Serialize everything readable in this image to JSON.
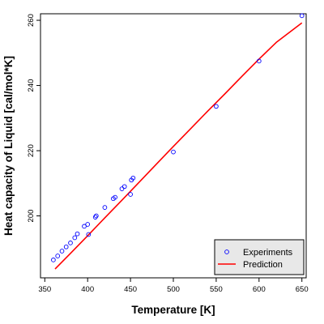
{
  "chart_data": {
    "type": "scatter",
    "title": "",
    "xlabel": "Temperature [K]",
    "ylabel": "Heat capacity of Liquid [cal/mol*K]",
    "xlim": [
      345,
      655
    ],
    "ylim": [
      181,
      262
    ],
    "xticks": [
      350,
      400,
      450,
      500,
      550,
      600,
      650
    ],
    "yticks": [
      200,
      220,
      240,
      260
    ],
    "grid": false,
    "legend_position": "bottom-right",
    "series": [
      {
        "name": "Experiments",
        "kind": "points",
        "color": "#0000ff",
        "x": [
          360,
          365,
          370,
          375,
          380,
          385,
          388,
          396,
          400,
          401,
          409,
          410,
          420,
          430,
          432,
          440,
          443,
          450,
          451,
          453,
          500,
          550,
          600,
          650
        ],
        "y": [
          186.5,
          187.7,
          189.2,
          190.5,
          191.7,
          193.3,
          194.5,
          196.8,
          197.4,
          194.3,
          199.6,
          200.0,
          202.6,
          205.3,
          205.7,
          208.3,
          209.0,
          206.6,
          211.0,
          211.6,
          219.6,
          233.6,
          247.5,
          261.4
        ]
      },
      {
        "name": "Prediction",
        "kind": "line",
        "color": "#ff0000",
        "x": [
          362,
          380,
          400,
          420,
          440,
          460,
          480,
          500,
          520,
          540,
          560,
          580,
          600,
          620,
          650
        ],
        "y": [
          183.7,
          188.5,
          193.9,
          199.4,
          204.8,
          210.3,
          215.8,
          221.3,
          226.7,
          232.1,
          237.4,
          242.8,
          248.1,
          253.2,
          259.2
        ]
      }
    ]
  }
}
